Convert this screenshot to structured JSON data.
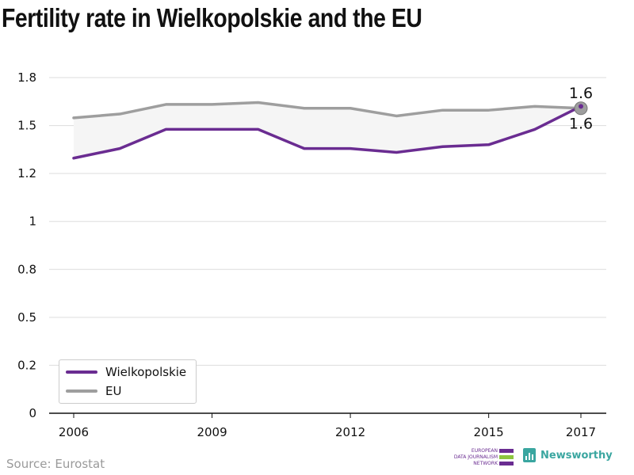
{
  "header": {
    "title": "Fertility rate in Wielkopolskie and the EU"
  },
  "footer": {
    "source": "Source: Eurostat",
    "edjn_lines": [
      "EUROPEAN",
      "DATA JOURNALISM",
      "NETWORK"
    ],
    "newsworthy": "Newsworthy"
  },
  "colors": {
    "wielkopolskie": "#6a2c91",
    "eu": "#9e9e9e",
    "band": "#f5f5f5",
    "grid": "#dddddd",
    "edjn_green": "#8dc63f",
    "newsworthy": "#3aa6a0"
  },
  "chart_data": {
    "type": "line",
    "title": "Fertility rate in Wielkopolskie and the EU",
    "x": [
      2006,
      2007,
      2008,
      2009,
      2010,
      2011,
      2012,
      2013,
      2014,
      2015,
      2016,
      2017
    ],
    "x_ticks": [
      2006,
      2009,
      2012,
      2015,
      2017
    ],
    "x_tick_labels": [
      "2006",
      "2009",
      "2012",
      "2015",
      "2017"
    ],
    "y_ticks": [
      0,
      0.25,
      0.5,
      0.75,
      1.0,
      1.25,
      1.5,
      1.75
    ],
    "y_tick_labels": [
      "0",
      "0.2",
      "0.5",
      "0.8",
      "1",
      "1.2",
      "1.5",
      "1.8"
    ],
    "ylim": [
      0,
      1.75
    ],
    "grid": true,
    "legend_position": "bottom-left",
    "series": [
      {
        "name": "Wielkopolskie",
        "values": [
          1.33,
          1.38,
          1.48,
          1.48,
          1.48,
          1.38,
          1.38,
          1.36,
          1.39,
          1.4,
          1.48,
          1.6
        ]
      },
      {
        "name": "EU",
        "values": [
          1.54,
          1.56,
          1.61,
          1.61,
          1.62,
          1.59,
          1.59,
          1.55,
          1.58,
          1.58,
          1.6,
          1.59
        ]
      }
    ],
    "end_labels": {
      "eu": "1.6",
      "wielkopolskie": "1.6"
    }
  }
}
